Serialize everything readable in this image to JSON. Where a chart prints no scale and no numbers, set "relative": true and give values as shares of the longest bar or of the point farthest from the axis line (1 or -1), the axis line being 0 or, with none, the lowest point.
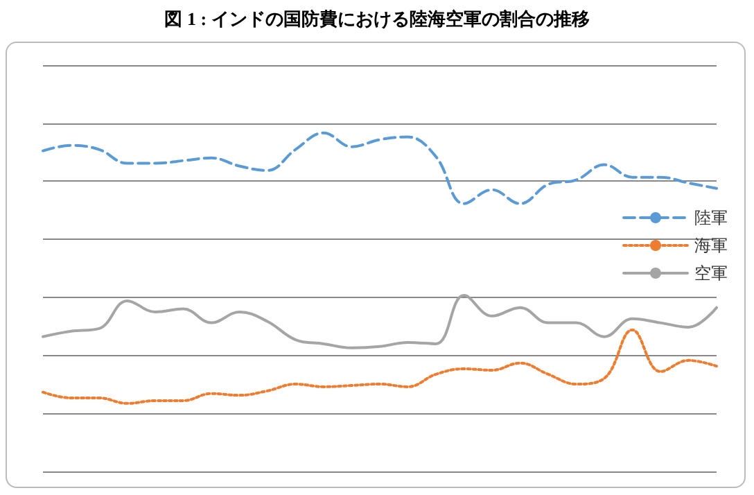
{
  "chart_data": {
    "type": "line",
    "title": "図 1 : インドの国防費における陸海空軍の割合の推移",
    "relative": true,
    "grid": "y",
    "legend": "right",
    "marker": "none",
    "categories": [
      null,
      null,
      null,
      null,
      null,
      null,
      null,
      null,
      null,
      null,
      null,
      null,
      null,
      null,
      null,
      null,
      null,
      null,
      null,
      null,
      null,
      null,
      null,
      null,
      null
    ],
    "series": [
      {
        "name": "陸軍",
        "color": "#5b9bd5",
        "line_style": "dashed",
        "values": [
          0.947,
          0.963,
          0.951,
          0.91,
          0.91,
          0.918,
          0.926,
          0.902,
          0.889,
          0.951,
          1,
          0.959,
          0.98,
          0.988,
          0.93,
          0.791,
          0.832,
          0.791,
          0.848,
          0.861,
          0.906,
          0.869,
          0.869,
          0.852,
          0.836
        ]
      },
      {
        "name": "海軍",
        "color": "#ed7d31",
        "line_style": "dotted",
        "values": [
          0.234,
          0.217,
          0.217,
          0.201,
          0.209,
          0.209,
          0.23,
          0.225,
          0.238,
          0.258,
          0.25,
          0.254,
          0.258,
          0.25,
          0.287,
          0.303,
          0.299,
          0.32,
          0.287,
          0.258,
          0.275,
          0.418,
          0.295,
          0.328,
          0.311
        ]
      },
      {
        "name": "空軍",
        "color": "#a5a5a5",
        "line_style": "solid",
        "values": [
          0.398,
          0.414,
          0.422,
          0.504,
          0.471,
          0.48,
          0.439,
          0.471,
          0.443,
          0.389,
          0.377,
          0.365,
          0.369,
          0.381,
          0.377,
          0.52,
          0.459,
          0.484,
          0.439,
          0.439,
          0.398,
          0.451,
          0.439,
          0.426,
          0.484
        ]
      }
    ]
  }
}
